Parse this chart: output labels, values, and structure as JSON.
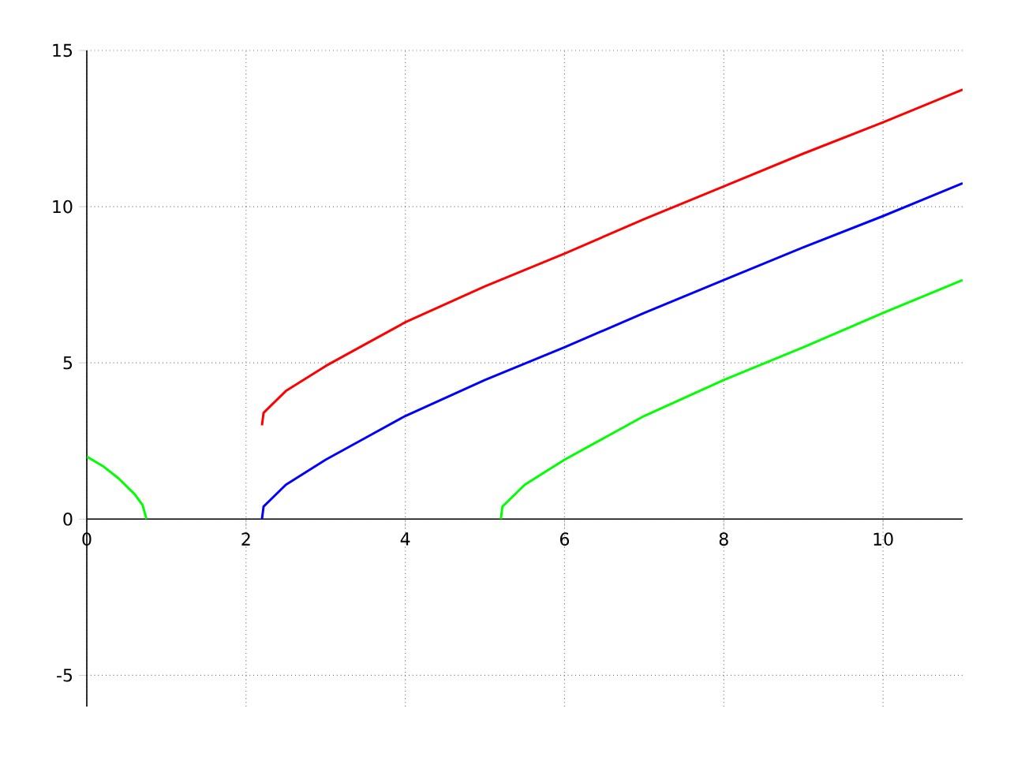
{
  "chart_data": {
    "type": "line",
    "xlim": [
      0,
      11
    ],
    "ylim": [
      -6,
      15
    ],
    "xticks": [
      0,
      2,
      4,
      6,
      8,
      10
    ],
    "yticks": [
      -5,
      0,
      5,
      10,
      15
    ],
    "grid": true,
    "line_style": "solid",
    "series": [
      {
        "color": "#ff0000",
        "x": [
          2.2,
          2.22,
          2.3,
          2.5,
          3,
          3.5,
          4,
          5,
          6,
          7,
          8,
          9,
          10,
          11
        ],
        "values": [
          3,
          3.4,
          3.6,
          4.1,
          4.9,
          5.6,
          6.3,
          7.45,
          8.5,
          9.6,
          10.65,
          11.7,
          12.7,
          13.75
        ]
      },
      {
        "color": "#0000ff",
        "x": [
          2.2,
          2.22,
          2.3,
          2.5,
          3,
          3.5,
          4,
          5,
          6,
          7,
          8,
          9,
          10,
          11
        ],
        "values": [
          0,
          0.4,
          0.6,
          1.1,
          1.9,
          2.6,
          3.3,
          4.45,
          5.5,
          6.6,
          7.65,
          8.7,
          9.7,
          10.75
        ]
      },
      {
        "color": "#00ff00",
        "x": [
          0,
          0.2,
          0.4,
          0.6,
          0.7,
          0.75,
          0.76,
          5.2,
          5.22,
          5.3,
          5.5,
          6,
          6.5,
          7,
          8,
          9,
          10,
          11
        ],
        "values": [
          2,
          1.7,
          1.3,
          0.8,
          0.45,
          0,
          null,
          0,
          0.4,
          0.6,
          1.1,
          1.9,
          2.6,
          3.3,
          4.45,
          5.5,
          6.6,
          7.65
        ]
      }
    ]
  }
}
